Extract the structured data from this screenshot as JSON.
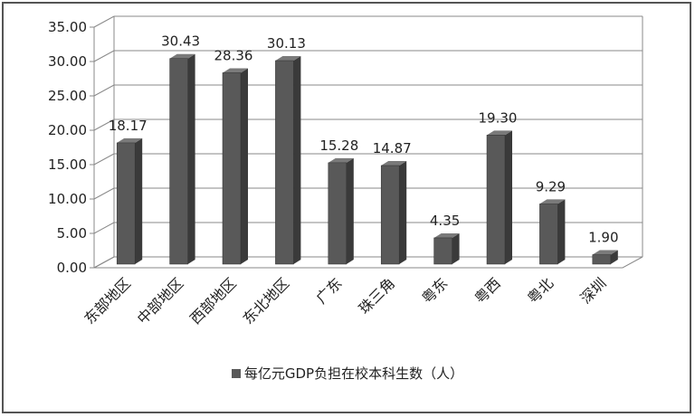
{
  "chart_data": {
    "type": "bar",
    "categories": [
      "东部地区",
      "中部地区",
      "西部地区",
      "东北地区",
      "广东",
      "珠三角",
      "粤东",
      "粤西",
      "粤北",
      "深圳"
    ],
    "series": [
      {
        "name": "每亿元GDP负担在校本科生数（人）",
        "values": [
          18.17,
          30.43,
          28.36,
          30.13,
          15.28,
          14.87,
          4.35,
          19.3,
          9.29,
          1.9
        ],
        "value_labels": [
          "18.17",
          "30.43",
          "28.36",
          "30.13",
          "15.28",
          "14.87",
          "4.35",
          "19.30",
          "9.29",
          "1.90"
        ]
      }
    ],
    "ylim": [
      0,
      35
    ],
    "yticks": [
      "0.00",
      "5.00",
      "10.00",
      "15.00",
      "20.00",
      "25.00",
      "30.00",
      "35.00"
    ],
    "grid": true,
    "legend_position": "bottom",
    "colors": {
      "bar_front": "#595959",
      "bar_top": "#7a7a7a",
      "bar_side": "#3a3a3a",
      "grid": "#8a8a8a",
      "frame": "#555555"
    }
  }
}
